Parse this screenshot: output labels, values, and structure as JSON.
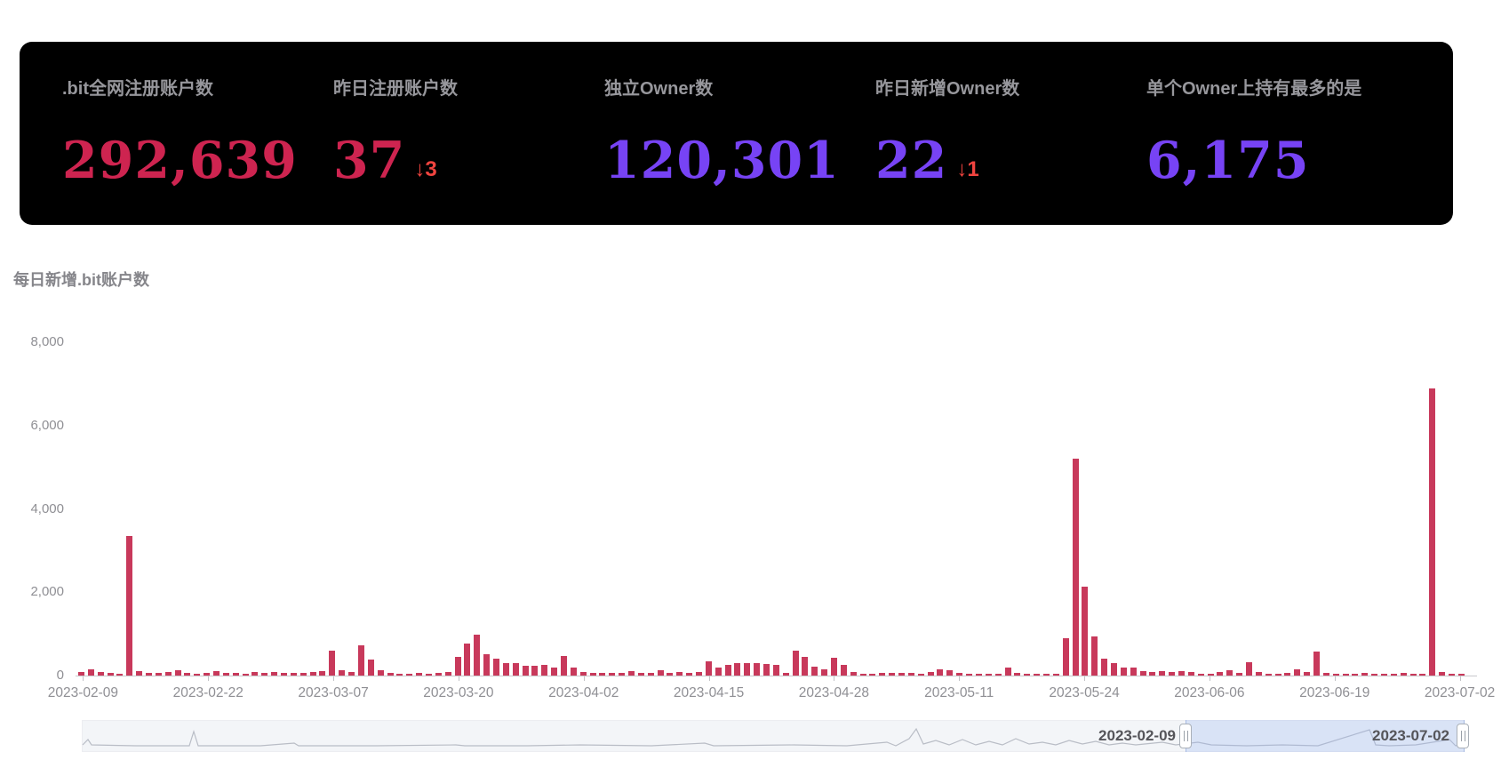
{
  "header": {
    "delta_color": "#f0443f",
    "cards": [
      {
        "label": ".bit全网注册账户数",
        "value": "292,639",
        "value_color": "#ce2450",
        "delta": ""
      },
      {
        "label": "昨日注册账户数",
        "value": "37",
        "value_color": "#ce2450",
        "delta": "↓3"
      },
      {
        "label": "独立Owner数",
        "value": "120,301",
        "value_color": "#7743f5",
        "delta": ""
      },
      {
        "label": "昨日新增Owner数",
        "value": "22",
        "value_color": "#7743f5",
        "delta": "↓1"
      },
      {
        "label": "单个Owner上持有最多的是",
        "value": "6,175",
        "value_color": "#7743f5",
        "delta": ""
      }
    ]
  },
  "chart_title": "每日新增.bit账户数",
  "chart_data": {
    "type": "bar",
    "title": "每日新增.bit账户数",
    "bar_color": "#c8395b",
    "grid": false,
    "legend": false,
    "ylim": [
      0,
      8000
    ],
    "y_ticks": [
      "0",
      "2,000",
      "4,000",
      "6,000",
      "8,000"
    ],
    "y_tick_values": [
      0,
      2000,
      4000,
      6000,
      8000
    ],
    "x_tick_every": 13,
    "x_tick_labels": [
      "2023-02-09",
      "2023-02-22",
      "2023-03-07",
      "2023-03-20",
      "2023-04-02",
      "2023-04-15",
      "2023-04-28",
      "2023-05-11",
      "2023-05-24",
      "2023-06-06",
      "2023-06-19",
      "2023-07-02"
    ],
    "dates": [
      "2023-02-09",
      "2023-02-10",
      "2023-02-11",
      "2023-02-12",
      "2023-02-13",
      "2023-02-14",
      "2023-02-15",
      "2023-02-16",
      "2023-02-17",
      "2023-02-18",
      "2023-02-19",
      "2023-02-20",
      "2023-02-21",
      "2023-02-22",
      "2023-02-23",
      "2023-02-24",
      "2023-02-25",
      "2023-02-26",
      "2023-02-27",
      "2023-02-28",
      "2023-03-01",
      "2023-03-02",
      "2023-03-03",
      "2023-03-04",
      "2023-03-05",
      "2023-03-06",
      "2023-03-07",
      "2023-03-08",
      "2023-03-09",
      "2023-03-10",
      "2023-03-11",
      "2023-03-12",
      "2023-03-13",
      "2023-03-14",
      "2023-03-15",
      "2023-03-16",
      "2023-03-17",
      "2023-03-18",
      "2023-03-19",
      "2023-03-20",
      "2023-03-21",
      "2023-03-22",
      "2023-03-23",
      "2023-03-24",
      "2023-03-25",
      "2023-03-26",
      "2023-03-27",
      "2023-03-28",
      "2023-03-29",
      "2023-03-30",
      "2023-03-31",
      "2023-04-01",
      "2023-04-02",
      "2023-04-03",
      "2023-04-04",
      "2023-04-05",
      "2023-04-06",
      "2023-04-07",
      "2023-04-08",
      "2023-04-09",
      "2023-04-10",
      "2023-04-11",
      "2023-04-12",
      "2023-04-13",
      "2023-04-14",
      "2023-04-15",
      "2023-04-16",
      "2023-04-17",
      "2023-04-18",
      "2023-04-19",
      "2023-04-20",
      "2023-04-21",
      "2023-04-22",
      "2023-04-23",
      "2023-04-24",
      "2023-04-25",
      "2023-04-26",
      "2023-04-27",
      "2023-04-28",
      "2023-04-29",
      "2023-04-30",
      "2023-05-01",
      "2023-05-02",
      "2023-05-03",
      "2023-05-04",
      "2023-05-05",
      "2023-05-06",
      "2023-05-07",
      "2023-05-08",
      "2023-05-09",
      "2023-05-10",
      "2023-05-11",
      "2023-05-12",
      "2023-05-13",
      "2023-05-14",
      "2023-05-15",
      "2023-05-16",
      "2023-05-17",
      "2023-05-18",
      "2023-05-19",
      "2023-05-20",
      "2023-05-21",
      "2023-05-22",
      "2023-05-23",
      "2023-05-24",
      "2023-05-25",
      "2023-05-26",
      "2023-05-27",
      "2023-05-28",
      "2023-05-29",
      "2023-05-30",
      "2023-05-31",
      "2023-06-01",
      "2023-06-02",
      "2023-06-03",
      "2023-06-04",
      "2023-06-05",
      "2023-06-06",
      "2023-06-07",
      "2023-06-08",
      "2023-06-09",
      "2023-06-10",
      "2023-06-11",
      "2023-06-12",
      "2023-06-13",
      "2023-06-14",
      "2023-06-15",
      "2023-06-16",
      "2023-06-17",
      "2023-06-18",
      "2023-06-19",
      "2023-06-20",
      "2023-06-21",
      "2023-06-22",
      "2023-06-23",
      "2023-06-24",
      "2023-06-25",
      "2023-06-26",
      "2023-06-27",
      "2023-06-28",
      "2023-06-29",
      "2023-06-30",
      "2023-07-01",
      "2023-07-02"
    ],
    "values": [
      95,
      150,
      80,
      60,
      50,
      3350,
      100,
      60,
      60,
      90,
      130,
      60,
      45,
      70,
      100,
      70,
      60,
      45,
      80,
      60,
      95,
      60,
      70,
      60,
      90,
      110,
      600,
      130,
      95,
      720,
      390,
      120,
      60,
      50,
      45,
      60,
      45,
      70,
      90,
      440,
      770,
      980,
      510,
      410,
      290,
      290,
      240,
      240,
      260,
      200,
      460,
      200,
      95,
      70,
      60,
      70,
      60,
      115,
      70,
      60,
      130,
      60,
      95,
      70,
      80,
      350,
      200,
      260,
      310,
      290,
      310,
      275,
      260,
      70,
      590,
      455,
      215,
      145,
      420,
      260,
      95,
      20,
      35,
      70,
      60,
      60,
      70,
      45,
      95,
      145,
      130,
      60,
      45,
      20,
      35,
      35,
      200,
      60,
      35,
      45,
      20,
      35,
      900,
      5200,
      2140,
      950,
      400,
      300,
      200,
      190,
      110,
      95,
      110,
      90,
      100,
      80,
      45,
      25,
      80,
      130,
      70,
      330,
      80,
      35,
      45,
      60,
      145,
      95,
      580,
      60,
      35,
      45,
      35,
      60,
      45,
      20,
      20,
      60,
      15,
      20,
      6900,
      85,
      40,
      30
    ]
  },
  "datazoom": {
    "start_label": "2023-02-09",
    "end_label": "2023-07-02"
  }
}
